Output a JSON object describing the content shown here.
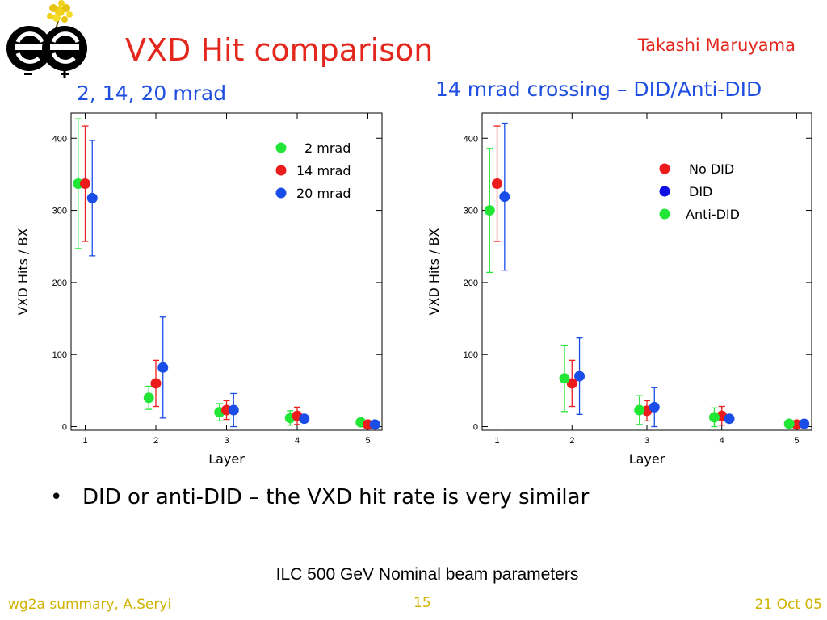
{
  "slide": {
    "title": "VXD Hit comparison",
    "author": "Takashi Maruyama",
    "bullet": "DID or anti-DID – the VXD hit rate is very similar",
    "footnote": "ILC 500 GeV Nominal beam parameters",
    "footer_left": "wg2a summary, A.Seryi",
    "footer_page": "15",
    "footer_date": "21 Oct 05"
  },
  "colors": {
    "title": "#e3271d",
    "subtitle": "#1f4fe0",
    "footer": "#d0b200",
    "green": "#22e636",
    "red": "#ec1c1c",
    "blue": "#1a4de8",
    "legend_blue": "#1010e6"
  },
  "chart_data": [
    {
      "type": "scatter",
      "subtitle": "2, 14, 20 mrad",
      "xlabel": "Layer",
      "ylabel": "VXD Hits / BX",
      "x_ticks": [
        1,
        2,
        3,
        4,
        5
      ],
      "y_ticks": [
        0,
        100,
        200,
        300,
        400
      ],
      "xlim": [
        0.8,
        5.2
      ],
      "ylim": [
        -5,
        435
      ],
      "error_bars": true,
      "legend_position": "top-right",
      "series": [
        {
          "name": "2 mrad",
          "color": "#22e636",
          "x_offset": -0.1,
          "x": [
            1,
            2,
            3,
            4,
            5
          ],
          "y": [
            337,
            40,
            20,
            12,
            6
          ],
          "err": [
            90,
            16,
            12,
            10,
            3
          ]
        },
        {
          "name": "14 mrad",
          "color": "#ec1c1c",
          "x_offset": 0,
          "x": [
            1,
            2,
            3,
            4,
            5
          ],
          "y": [
            337,
            60,
            23,
            15,
            3
          ],
          "err": [
            80,
            32,
            13,
            12,
            3
          ]
        },
        {
          "name": "20 mrad",
          "color": "#1a4de8",
          "x_offset": 0.1,
          "x": [
            1,
            2,
            3,
            4,
            5
          ],
          "y": [
            317,
            82,
            23,
            11,
            3
          ],
          "err": [
            80,
            70,
            23,
            4,
            3
          ]
        }
      ]
    },
    {
      "type": "scatter",
      "subtitle": "14 mrad crossing – DID/Anti-DID",
      "xlabel": "Layer",
      "ylabel": "VXD Hits / BX",
      "x_ticks": [
        1,
        2,
        3,
        4,
        5
      ],
      "y_ticks": [
        0,
        100,
        200,
        300,
        400
      ],
      "xlim": [
        0.8,
        5.2
      ],
      "ylim": [
        -5,
        435
      ],
      "error_bars": true,
      "legend_position": "top-right",
      "series": [
        {
          "name": "No DID",
          "color": "#ec1c1c",
          "legend_color": "#ec1c1c",
          "x_offset": 0,
          "x": [
            1,
            2,
            3,
            4,
            5
          ],
          "y": [
            337,
            60,
            22,
            15,
            3
          ],
          "err": [
            80,
            32,
            14,
            13,
            3
          ]
        },
        {
          "name": "DID",
          "color": "#1a4de8",
          "legend_color": "#1010e6",
          "x_offset": 0.1,
          "x": [
            1,
            2,
            3,
            4,
            5
          ],
          "y": [
            319,
            70,
            27,
            11,
            4
          ],
          "err": [
            102,
            53,
            27,
            5,
            3
          ]
        },
        {
          "name": "Anti-DID",
          "color": "#22e636",
          "legend_color": "#22e636",
          "x_offset": -0.1,
          "x": [
            1,
            2,
            3,
            4,
            5
          ],
          "y": [
            300,
            67,
            23,
            13,
            4
          ],
          "err": [
            86,
            46,
            20,
            13,
            3
          ]
        }
      ]
    }
  ]
}
